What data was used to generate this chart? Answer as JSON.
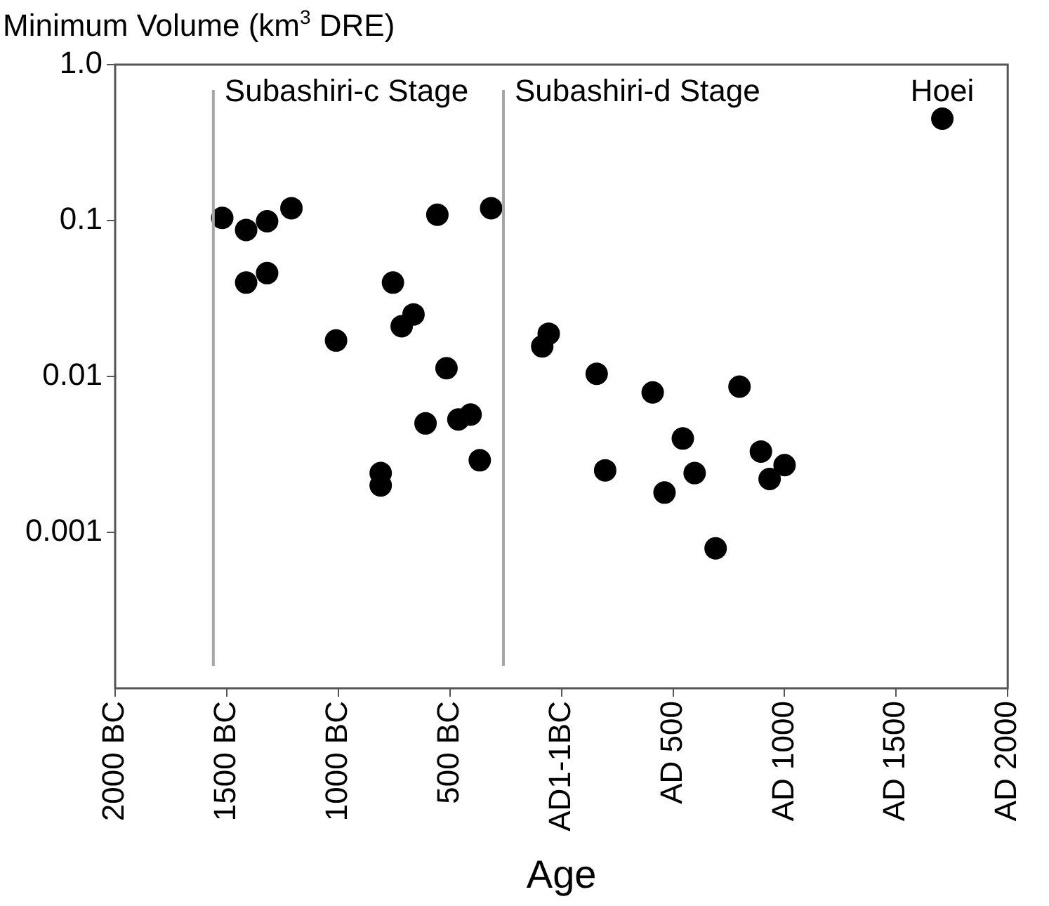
{
  "chart_data": {
    "type": "scatter",
    "xlabel": "Age",
    "ylabel": "Minimum Volume (km$^{3}$ DRE)",
    "log": "y",
    "grid": false,
    "legend": false,
    "marker": "circle",
    "xlim": [
      -2000,
      2000
    ],
    "xticks": [
      {
        "value": -2000,
        "label": "2000 BC"
      },
      {
        "value": -1500,
        "label": "1500 BC"
      },
      {
        "value": -1000,
        "label": "1000 BC"
      },
      {
        "value": -500,
        "label": "500 BC"
      },
      {
        "value": 0,
        "label": "AD1-1BC"
      },
      {
        "value": 500,
        "label": "AD 500"
      },
      {
        "value": 1000,
        "label": "AD 1000"
      },
      {
        "value": 1500,
        "label": "AD 1500"
      },
      {
        "value": 2000,
        "label": "AD 2000"
      }
    ],
    "ylim": [
      0.0001,
      1
    ],
    "yticks": [
      {
        "value": 1,
        "label": "1.0"
      },
      0.1,
      0.01,
      0.001
    ],
    "series": [
      {
        "color": "#000000",
        "x": [
          -1520,
          -1413,
          -1319,
          -1210,
          -1413,
          -1319,
          -1010,
          -755,
          -716,
          -663,
          -556,
          -315,
          -515,
          -609,
          -462,
          -407,
          -366,
          -810,
          -810,
          1707,
          -57,
          -86,
          158,
          409,
          798,
          544,
          894,
          1000,
          933,
          196,
          597,
          462,
          691
        ],
        "values": [
          0.104,
          0.087,
          0.099,
          0.12,
          0.04,
          0.046,
          0.017,
          0.04,
          0.021,
          0.025,
          0.109,
          0.12,
          0.0113,
          0.005,
          0.0053,
          0.0057,
          0.0029,
          0.0024,
          0.002,
          0.45,
          0.0188,
          0.0156,
          0.0104,
          0.0079,
          0.0086,
          0.004,
          0.0033,
          0.0027,
          0.0022,
          0.0025,
          0.0024,
          0.0018,
          0.00079
        ]
      }
    ],
    "ref_lines": [
      {
        "axis": "x",
        "value": -1560,
        "color": "#a6a6a6"
      },
      {
        "axis": "x",
        "value": -260,
        "color": "#a6a6a6"
      }
    ],
    "annotations": [
      "Subashiri-c Stage",
      "Subashiri-d Stage",
      "Hoei"
    ]
  }
}
